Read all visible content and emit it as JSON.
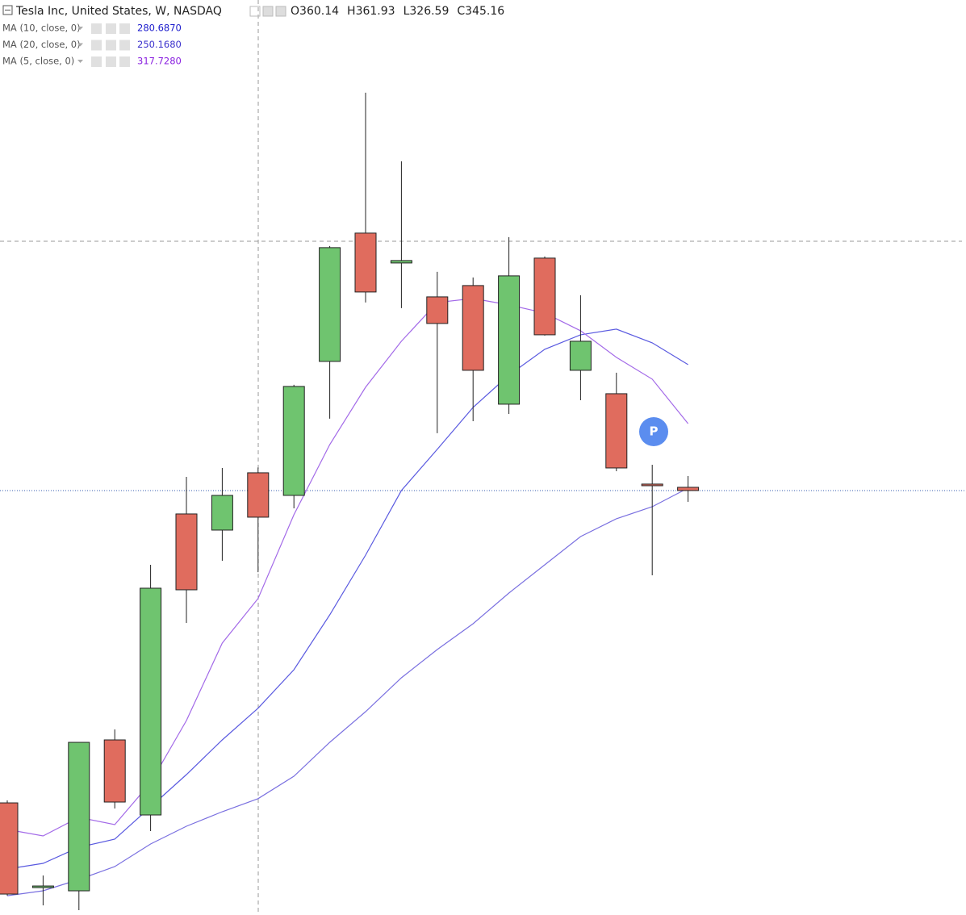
{
  "chart_data": {
    "type": "candlestick",
    "title": "Tesla Inc, United States, W, NASDAQ",
    "ohlc_header": [
      {
        "label": "O",
        "value": 360.14
      },
      {
        "label": "H",
        "value": 361.93
      },
      {
        "label": "L",
        "value": 326.59
      },
      {
        "label": "C",
        "value": 345.16
      }
    ],
    "up_color": "#6fc46f",
    "down_color": "#e06c5e",
    "ylim": [
      210.9,
      519.7
    ],
    "open": [
      248.74,
      220.15,
      219.06,
      269.99,
      244.66,
      346.25,
      340.8,
      360.14,
      352.51,
      397.73,
      441.03,
      430.95,
      419.51,
      423.33,
      383.29,
      432.59,
      394.73,
      386.83,
      356.33,
      355.24
    ],
    "high": [
      249.56,
      224.23,
      269.17,
      273.53,
      329.09,
      358.78,
      361.77,
      361.93,
      389.83,
      436.67,
      488.42,
      465.27,
      427.96,
      426.05,
      439.67,
      433.13,
      420.06,
      393.91,
      362.86,
      359.05
    ],
    "low": [
      217.42,
      214.15,
      212.52,
      246.84,
      239.21,
      309.48,
      330.45,
      326.59,
      348.16,
      378.39,
      417.61,
      415.7,
      373.49,
      377.57,
      380.02,
      406.44,
      384.65,
      360.68,
      325.55,
      350.34
    ],
    "close": [
      217.97,
      220.69,
      269.17,
      249.02,
      321.19,
      320.65,
      352.51,
      345.16,
      389.28,
      436.13,
      421.15,
      431.77,
      410.53,
      394.73,
      426.6,
      406.71,
      404.53,
      361.77,
      355.78,
      354.15
    ],
    "series": [
      {
        "name": "MA (10, close, 0)",
        "value_label": "280.6870",
        "color": "#5a5ae0",
        "label_color": "#1a1acc",
        "values": [
          226.41,
          228.32,
          233.76,
          236.49,
          247.38,
          258.28,
          269.99,
          280.69,
          293.68,
          312.2,
          332.36,
          354.15,
          368.04,
          382.2,
          393.1,
          401.81,
          406.71,
          408.62,
          403.99,
          396.64
        ]
      },
      {
        "name": "MA (20, close, 0)",
        "value_label": "250.1680",
        "color": "#7a70e0",
        "label_color": "#3a30cc",
        "values": [
          217.42,
          219.06,
          222.87,
          227.23,
          234.85,
          240.85,
          245.75,
          250.17,
          257.73,
          269.17,
          279.52,
          290.96,
          300.49,
          309.21,
          319.56,
          329.09,
          338.62,
          344.62,
          348.7,
          354.97
        ]
      },
      {
        "name": "MA (5, close, 0)",
        "value_label": "317.7280",
        "color": "#a36ae8",
        "label_color": "#8a20e0",
        "values": [
          239.76,
          237.58,
          243.84,
          241.39,
          255.55,
          276.53,
          302.67,
          317.73,
          345.98,
          369.67,
          389.01,
          404.53,
          417.61,
          418.97,
          416.79,
          414.07,
          408.08,
          399.09,
          391.73,
          376.75
        ]
      }
    ]
  }
}
